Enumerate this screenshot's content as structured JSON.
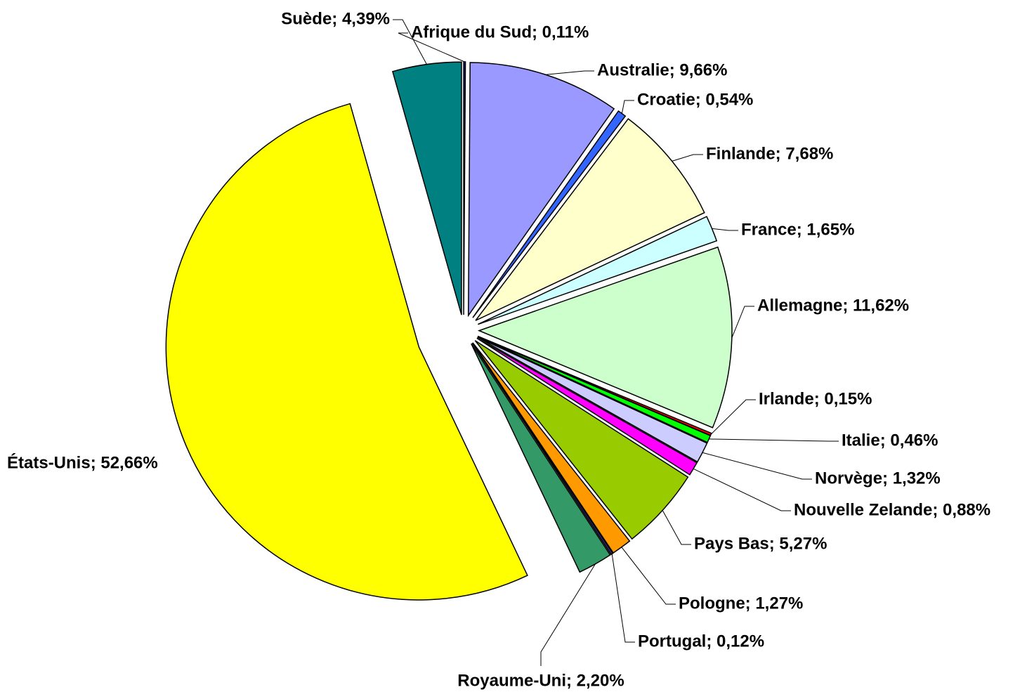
{
  "chart_data": {
    "type": "pie",
    "values": [
      0.11,
      9.66,
      0.54,
      7.68,
      1.65,
      11.62,
      0.15,
      0.46,
      1.32,
      0.88,
      5.27,
      1.27,
      0.12,
      2.2,
      52.66,
      4.39
    ],
    "value_labels": [
      "Afrique du Sud; 0,11%",
      "Australie; 9,66%",
      "Croatie; 0,54%",
      "Finlande; 7,68%",
      "France; 1,65%",
      "Allemagne; 11,62%",
      "Irlande; 0,15%",
      "Italie; 0,46%",
      "Norvège; 1,32%",
      "Nouvelle Zelande; 0,88%",
      "Pays Bas; 5,27%",
      "Pologne; 1,27%",
      "Portugal; 0,12%",
      "Royaume-Uni; 2,20%",
      "États-Unis; 52,66%",
      "Suède; 4,39%"
    ],
    "colors": [
      "#000080",
      "#9999ff",
      "#3366ff",
      "#ffffcc",
      "#ccffff",
      "#ccffcc",
      "#ff0000",
      "#00ff00",
      "#ccccff",
      "#ff00ff",
      "#99cc00",
      "#ff9900",
      "#333399",
      "#339966",
      "#ffff00",
      "#008080"
    ]
  }
}
